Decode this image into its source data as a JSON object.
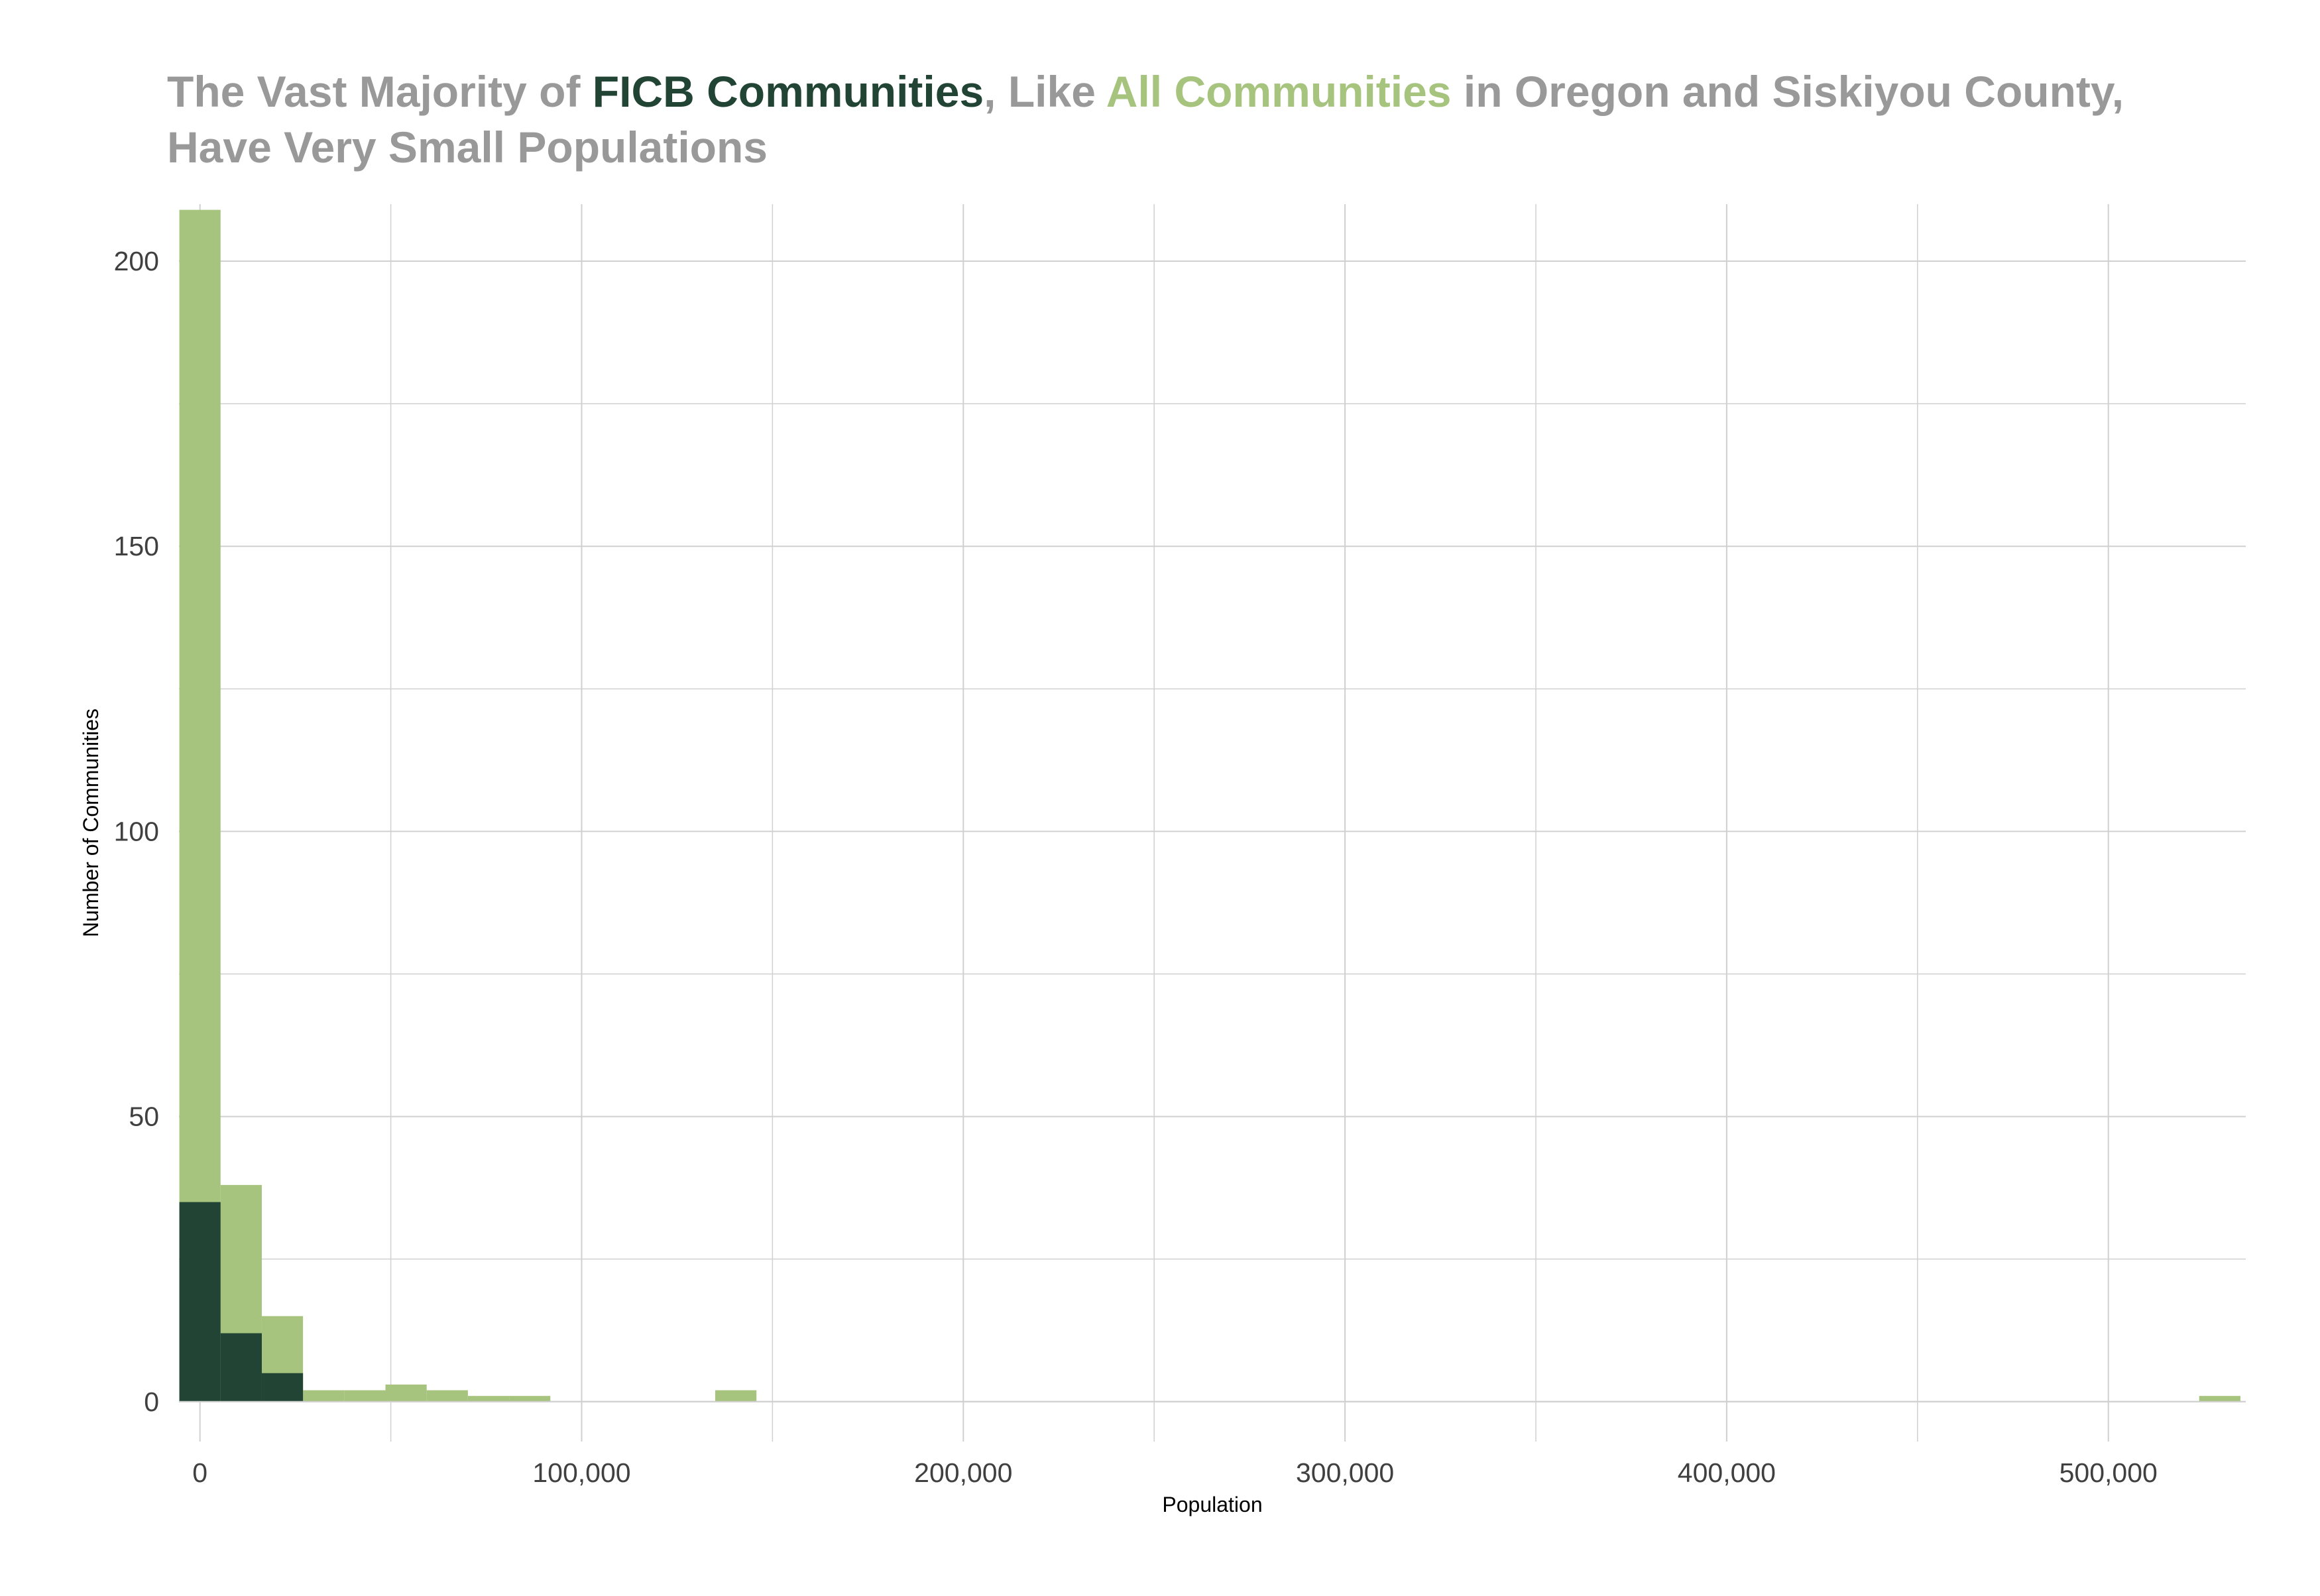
{
  "title": {
    "line1_part1": "The Vast Majority of ",
    "line1_part2": "FICB Communities",
    "line1_part3": ", Like ",
    "line1_part4": "All Communities",
    "line1_part5": " in Oregon and Siskiyou County,",
    "line2": "Have Very Small Populations"
  },
  "colors": {
    "ficb": "#214434",
    "all": "#a6c47d",
    "title_gray": "#999999",
    "grid": "#d0d0d0"
  },
  "chart_data": {
    "type": "bar",
    "title": "The Vast Majority of FICB Communities, Like All Communities in Oregon and Siskiyou County, Have Very Small Populations",
    "xlabel": "Population",
    "ylabel": "Number of Communities",
    "xlim": [
      -5500,
      536000
    ],
    "ylim": [
      -7,
      210
    ],
    "x_ticks": [
      0,
      100000,
      200000,
      300000,
      400000,
      500000
    ],
    "x_tick_labels": [
      "0",
      "100,000",
      "200,000",
      "300,000",
      "400,000",
      "500,000"
    ],
    "y_ticks": [
      0,
      50,
      100,
      150,
      200
    ],
    "y_tick_labels": [
      "0",
      "50",
      "100",
      "150",
      "200"
    ],
    "grid": true,
    "bin_width": 10800,
    "bins_start": [
      -5400,
      5400,
      16200,
      27000,
      37800,
      48600,
      59400,
      70200,
      81000,
      135000,
      523800
    ],
    "series": [
      {
        "name": "All Communities",
        "values": [
          209,
          38,
          15,
          2,
          2,
          3,
          2,
          1,
          1,
          2,
          1
        ]
      },
      {
        "name": "FICB Communities",
        "values": [
          35,
          12,
          5,
          0,
          0,
          0,
          0,
          0,
          0,
          0,
          0
        ]
      }
    ]
  }
}
